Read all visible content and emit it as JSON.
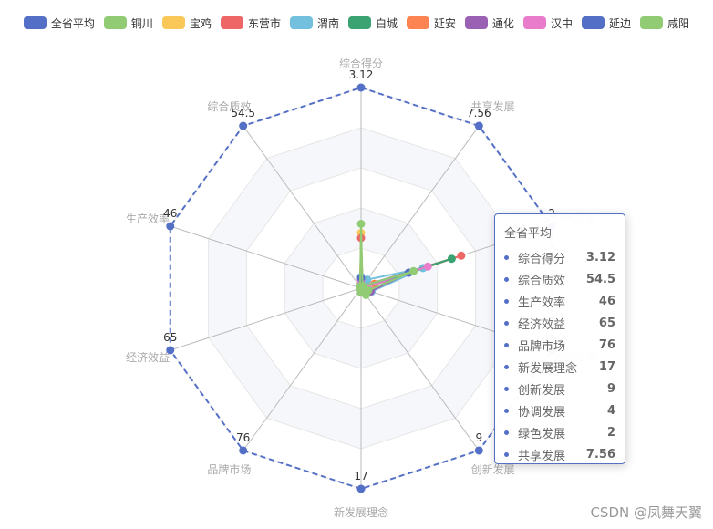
{
  "legend": [
    {
      "name": "全省平均",
      "color": "#5470c6"
    },
    {
      "name": "铜川",
      "color": "#91cc75"
    },
    {
      "name": "宝鸡",
      "color": "#fac858"
    },
    {
      "name": "东营市",
      "color": "#ee6666"
    },
    {
      "name": "渭南",
      "color": "#73c0de"
    },
    {
      "name": "白城",
      "color": "#3ba272"
    },
    {
      "name": "延安",
      "color": "#fc8452"
    },
    {
      "name": "通化",
      "color": "#9a60b4"
    },
    {
      "name": "汉中",
      "color": "#ea7ccc"
    },
    {
      "name": "延边",
      "color": "#5470c6"
    },
    {
      "name": "咸阳",
      "color": "#91cc75"
    }
  ],
  "chart_data": {
    "type": "radar",
    "indicators": [
      "综合得分",
      "共享发展",
      "绿色发展",
      "协调发展",
      "创新发展",
      "新发展理念",
      "品牌市场",
      "经济效益",
      "生产效率",
      "综合质效"
    ],
    "max": [
      3.12,
      7.56,
      2,
      4,
      9,
      17,
      76,
      65,
      46,
      54.5
    ],
    "ring_colors": [
      "#ffffff",
      "#f6f7fb"
    ],
    "series": [
      {
        "name": "全省平均",
        "color": "#5470c6",
        "dashed": true,
        "values": [
          3.12,
          7.56,
          2,
          4,
          9,
          17,
          76,
          65,
          46,
          54.5
        ]
      },
      {
        "name": "铜川",
        "color": "#91cc75",
        "values": [
          0.07,
          0,
          0,
          0,
          0,
          0,
          0,
          0,
          0,
          0
        ]
      },
      {
        "name": "宝鸡",
        "color": "#fac858",
        "values": [
          0.86,
          0.1,
          0.14,
          0.03,
          0.04,
          0.06,
          0.03,
          0.11,
          0.11,
          0.45
        ]
      },
      {
        "name": "东营市",
        "color": "#ee6666",
        "values": [
          0.78,
          0.1,
          1.05,
          0.03,
          0.04,
          0.06,
          0.03,
          0.11,
          0.11,
          0.45
        ]
      },
      {
        "name": "渭南",
        "color": "#73c0de",
        "values": [
          0.18,
          0.4,
          0.65,
          0.22,
          0.1,
          0.06,
          0.03,
          0.11,
          0.11,
          0.45
        ]
      },
      {
        "name": "白城",
        "color": "#3ba272",
        "values": [
          0.13,
          0.1,
          0.95,
          0.02,
          0.04,
          0.06,
          0.03,
          0.11,
          0.11,
          0.25
        ]
      },
      {
        "name": "延安",
        "color": "#fc8452",
        "values": [
          0.15,
          0.1,
          0.14,
          0.02,
          0.04,
          0.06,
          0.02,
          0.05,
          0.08,
          0.25
        ]
      },
      {
        "name": "通化",
        "color": "#9a60b4",
        "values": [
          0.14,
          0.1,
          0.5,
          0.2,
          0.04,
          0.36,
          0.28,
          0.2,
          0.11,
          0.45
        ]
      },
      {
        "name": "汉中",
        "color": "#ea7ccc",
        "values": [
          0.13,
          0.1,
          0.7,
          0.02,
          0.04,
          0.06,
          0.03,
          0.11,
          0.08,
          0.45
        ]
      },
      {
        "name": "延边",
        "color": "#5470c6",
        "values": [
          0.16,
          0.1,
          0.5,
          0.15,
          0.04,
          0.06,
          0.27,
          0.2,
          0.11,
          0.45
        ]
      },
      {
        "name": "咸阳",
        "color": "#91cc75",
        "values": [
          1.0,
          0.1,
          0.55,
          0.15,
          0.37,
          0.36,
          0.27,
          0.23,
          0.11,
          0.45
        ]
      }
    ]
  },
  "max_labels": [
    "3.12",
    "7.56",
    "2",
    "4",
    "9",
    "17",
    "76",
    "65",
    "46",
    "54.5"
  ],
  "tooltip": {
    "title": "全省平均",
    "rows": [
      {
        "label": "综合得分",
        "value": "3.12"
      },
      {
        "label": "综合质效",
        "value": "54.5"
      },
      {
        "label": "生产效率",
        "value": "46"
      },
      {
        "label": "经济效益",
        "value": "65"
      },
      {
        "label": "品牌市场",
        "value": "76"
      },
      {
        "label": "新发展理念",
        "value": "17"
      },
      {
        "label": "创新发展",
        "value": "9"
      },
      {
        "label": "协调发展",
        "value": "4"
      },
      {
        "label": "绿色发展",
        "value": "2"
      },
      {
        "label": "共享发展",
        "value": "7.56"
      }
    ]
  },
  "watermark": "CSDN @凤舞天翼"
}
